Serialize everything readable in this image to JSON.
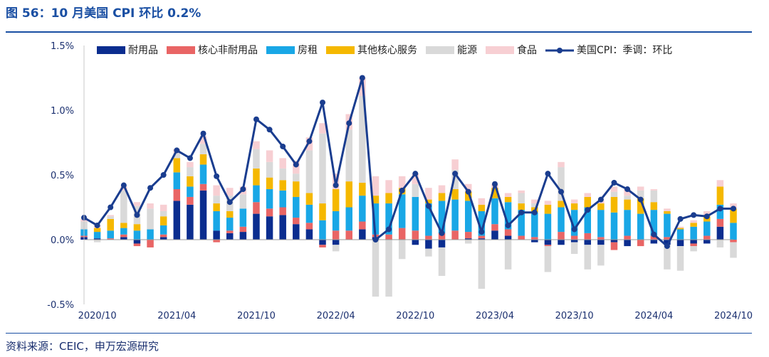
{
  "title": "图 56：10 月美国 CPI 环比 0.2%",
  "source": "资料来源：CEIC，申万宏源研究",
  "chart_data": {
    "type": "bar",
    "stacked": true,
    "xlim": [
      0,
      49
    ],
    "x": [
      "2020/09",
      "2020/10",
      "2020/11",
      "2020/12",
      "2021/01",
      "2021/02",
      "2021/03",
      "2021/04",
      "2021/05",
      "2021/06",
      "2021/07",
      "2021/08",
      "2021/09",
      "2021/10",
      "2021/11",
      "2021/12",
      "2022/01",
      "2022/02",
      "2022/03",
      "2022/04",
      "2022/05",
      "2022/06",
      "2022/07",
      "2022/08",
      "2022/09",
      "2022/10",
      "2022/11",
      "2022/12",
      "2023/01",
      "2023/02",
      "2023/03",
      "2023/04",
      "2023/05",
      "2023/06",
      "2023/07",
      "2023/08",
      "2023/09",
      "2023/10",
      "2023/11",
      "2023/12",
      "2024/01",
      "2024/02",
      "2024/03",
      "2024/04",
      "2024/05",
      "2024/06",
      "2024/07",
      "2024/08",
      "2024/09",
      "2024/10"
    ],
    "x_tick_labels": [
      "2020/10",
      "2021/04",
      "2021/10",
      "2022/04",
      "2022/10",
      "2023/04",
      "2023/10",
      "2024/04",
      "2024/10"
    ],
    "y_tick_labels": [
      "1.5%",
      "1.0%",
      "0.5%",
      "0.0%",
      "-0.5%"
    ],
    "ylim": [
      -0.5,
      1.5
    ],
    "y_ticks": [
      1.5,
      1.0,
      0.5,
      0.0,
      -0.5
    ],
    "series": [
      {
        "name": "耐用品",
        "color": "#0b2d8f",
        "values": [
          0.02,
          0.01,
          0.0,
          0.02,
          -0.03,
          0.0,
          0.02,
          0.3,
          0.27,
          0.38,
          0.07,
          0.05,
          0.06,
          0.2,
          0.18,
          0.19,
          0.12,
          0.08,
          -0.04,
          -0.04,
          0.0,
          0.08,
          0.02,
          0.0,
          0.0,
          -0.04,
          -0.07,
          -0.06,
          0.0,
          0.01,
          0.01,
          0.07,
          0.03,
          0.0,
          -0.02,
          -0.04,
          -0.04,
          -0.02,
          -0.04,
          -0.04,
          -0.02,
          -0.05,
          0.0,
          -0.03,
          -0.04,
          -0.05,
          -0.03,
          -0.03,
          0.1,
          0.0
        ]
      },
      {
        "name": "核心非耐用品",
        "color": "#e96565",
        "values": [
          0.01,
          0.0,
          0.01,
          0.02,
          -0.02,
          -0.06,
          0.02,
          0.09,
          0.06,
          0.05,
          -0.02,
          0.02,
          0.04,
          0.09,
          0.06,
          0.06,
          0.05,
          0.05,
          -0.02,
          0.07,
          0.07,
          0.06,
          0.02,
          0.04,
          0.09,
          0.07,
          0.03,
          0.05,
          0.07,
          0.05,
          0.02,
          0.05,
          0.05,
          0.03,
          0.02,
          -0.01,
          0.06,
          0.03,
          0.05,
          0.02,
          -0.06,
          0.03,
          -0.05,
          0.03,
          0.02,
          0.0,
          -0.02,
          0.03,
          0.06,
          -0.02
        ]
      },
      {
        "name": "房租",
        "color": "#19a7e6",
        "values": [
          0.05,
          0.05,
          0.06,
          0.05,
          0.07,
          0.08,
          0.07,
          0.13,
          0.08,
          0.15,
          0.15,
          0.1,
          0.14,
          0.13,
          0.15,
          0.13,
          0.16,
          0.14,
          0.15,
          0.15,
          0.18,
          0.2,
          0.24,
          0.24,
          0.26,
          0.26,
          0.25,
          0.25,
          0.24,
          0.24,
          0.19,
          0.2,
          0.21,
          0.2,
          0.19,
          0.2,
          0.19,
          0.2,
          0.2,
          0.21,
          0.21,
          0.2,
          0.2,
          0.2,
          0.18,
          0.08,
          0.1,
          0.11,
          0.11,
          0.13
        ]
      },
      {
        "name": "其他核心服务",
        "color": "#f5b800",
        "values": [
          0.0,
          0.03,
          0.09,
          0.04,
          0.05,
          0.0,
          0.07,
          0.11,
          0.08,
          0.08,
          0.06,
          0.05,
          0.0,
          0.13,
          0.09,
          0.08,
          0.12,
          0.09,
          0.13,
          0.17,
          0.2,
          0.1,
          0.06,
          0.08,
          0.05,
          0.0,
          0.03,
          0.06,
          0.08,
          0.07,
          0.05,
          0.08,
          0.04,
          0.05,
          0.04,
          0.07,
          0.05,
          0.05,
          0.08,
          0.05,
          0.12,
          0.08,
          0.12,
          0.06,
          0.02,
          0.01,
          0.03,
          0.04,
          0.14,
          0.11
        ]
      },
      {
        "name": "能源",
        "color": "#d9d9d9",
        "values": [
          0.06,
          -0.02,
          0.02,
          0.25,
          0.14,
          0.16,
          0.04,
          0.04,
          0.07,
          0.08,
          0.06,
          0.12,
          0.11,
          0.15,
          0.12,
          0.09,
          0.06,
          0.33,
          0.54,
          -0.05,
          0.4,
          0.67,
          -0.44,
          -0.44,
          -0.15,
          0.1,
          -0.06,
          -0.22,
          0.15,
          -0.03,
          -0.38,
          0.0,
          -0.23,
          0.08,
          0.03,
          -0.2,
          0.26,
          -0.09,
          -0.19,
          -0.16,
          0.04,
          0.03,
          0.06,
          0.09,
          -0.19,
          -0.19,
          -0.04,
          0.0,
          -0.06,
          -0.12
        ]
      },
      {
        "name": "食品",
        "color": "#f7cfd3",
        "values": [
          0.02,
          0.02,
          0.01,
          0.03,
          0.03,
          0.04,
          0.05,
          0.03,
          0.04,
          0.06,
          0.08,
          0.06,
          0.06,
          0.06,
          0.09,
          0.08,
          0.1,
          0.1,
          0.08,
          0.12,
          0.12,
          0.14,
          0.15,
          0.1,
          0.09,
          0.08,
          0.09,
          0.06,
          0.08,
          0.06,
          0.05,
          0.03,
          0.03,
          0.02,
          0.03,
          0.03,
          0.04,
          0.03,
          0.03,
          0.02,
          0.04,
          0.05,
          0.03,
          0.01,
          0.02,
          0.01,
          0.02,
          0.04,
          0.05,
          0.04
        ]
      }
    ],
    "line": {
      "name": "美国CPI：季调：环比",
      "color": "#1a3d8f",
      "values": [
        0.17,
        0.11,
        0.25,
        0.42,
        0.19,
        0.4,
        0.5,
        0.69,
        0.63,
        0.82,
        0.49,
        0.29,
        0.39,
        0.93,
        0.85,
        0.72,
        0.58,
        0.76,
        1.06,
        0.42,
        0.9,
        1.25,
        0.0,
        0.08,
        0.38,
        0.51,
        0.26,
        0.05,
        0.51,
        0.37,
        0.06,
        0.43,
        0.11,
        0.21,
        0.21,
        0.51,
        0.37,
        0.08,
        0.23,
        0.31,
        0.44,
        0.39,
        0.31,
        0.04,
        -0.05,
        0.16,
        0.19,
        0.18,
        0.24,
        0.24
      ]
    }
  }
}
